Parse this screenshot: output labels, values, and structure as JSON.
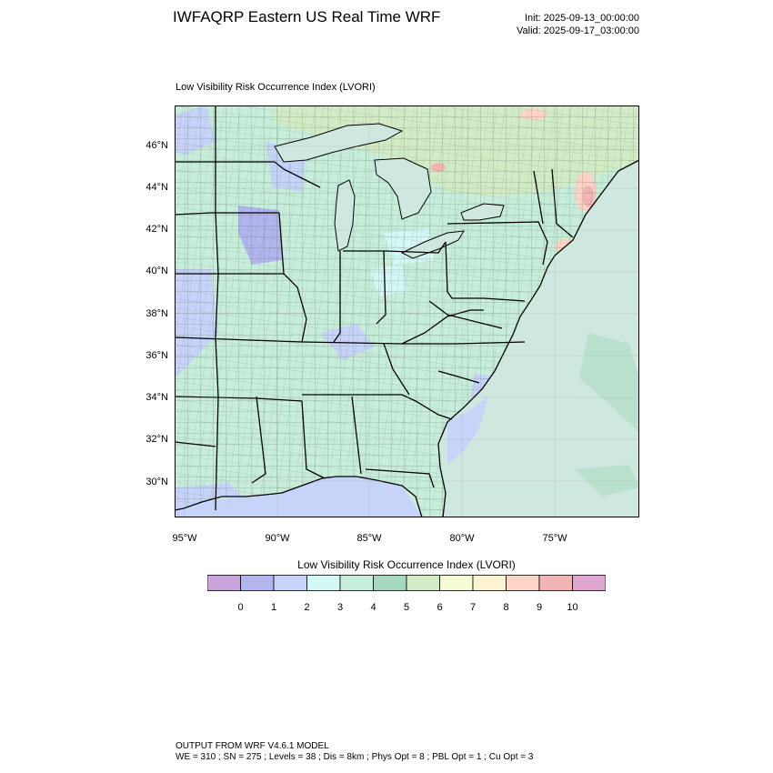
{
  "header": {
    "title": "IWFAQRP Eastern US Real Time WRF",
    "init": "Init: 2025-09-13_00:00:00",
    "valid": "Valid: 2025-09-17_03:00:00"
  },
  "plot": {
    "label": "Low Visibility Risk Occurrence Index   (LVORI)",
    "lat_labels": [
      "46°N",
      "44°N",
      "42°N",
      "40°N",
      "38°N",
      "36°N",
      "34°N",
      "32°N",
      "30°N"
    ],
    "lon_labels": [
      "95°W",
      "90°W",
      "85°W",
      "80°W",
      "75°W"
    ]
  },
  "colorbar": {
    "title": "Low Visibility Risk Occurrence Index  (LVORI)",
    "ticks": [
      "0",
      "1",
      "2",
      "3",
      "4",
      "5",
      "6",
      "7",
      "8",
      "9",
      "10"
    ],
    "colors": [
      "#c9a5dc",
      "#b2b5ee",
      "#c6d4f9",
      "#d4f8f5",
      "#c7eedb",
      "#a7d8bd",
      "#d2edc6",
      "#f5fbd2",
      "#fdf3d2",
      "#fed4c6",
      "#f2b5b4",
      "#dfa6cf"
    ]
  },
  "footer": {
    "line1": "OUTPUT FROM WRF V4.6.1 MODEL",
    "line2": "WE = 310 ; SN = 275 ; Levels = 38 ; Dis = 8km ; Phys Opt = 8 ; PBL Opt = 1 ; Cu Opt = 3"
  }
}
